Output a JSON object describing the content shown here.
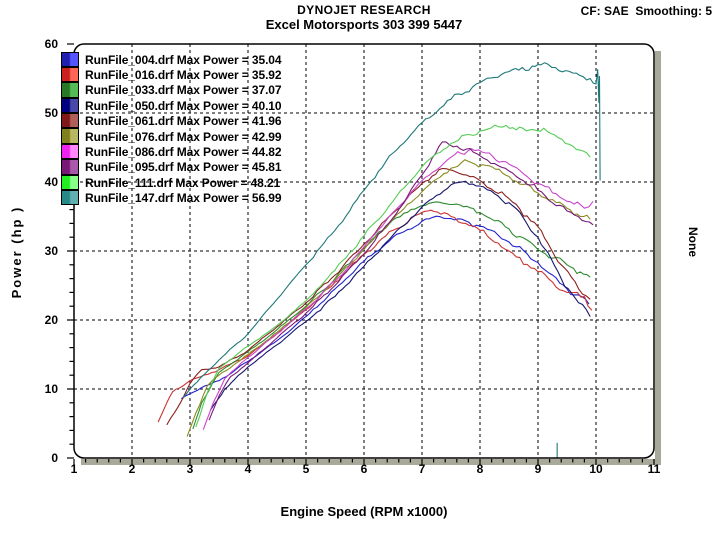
{
  "chart_data": {
    "type": "line",
    "title": "DYNOJET RESEARCH",
    "subtitle": "Excel Motorsports 303 399 5447",
    "correction_note": "CF: SAE  Smoothing: 5",
    "xlabel": "Engine Speed (RPM x1000)",
    "ylabel": "Power (hp )",
    "right_ylabel": "None",
    "xlim": [
      1,
      11
    ],
    "ylim": [
      0,
      60
    ],
    "x_major_ticks": [
      1,
      2,
      3,
      4,
      5,
      6,
      7,
      8,
      9,
      10,
      11
    ],
    "x_minor_step": 0.2,
    "y_major_ticks": [
      0,
      10,
      20,
      30,
      40,
      50,
      60
    ],
    "y_minor_step": 2,
    "grid": "dashed-both-axes",
    "legend_position": "top-left",
    "plot_border_color": "#000000",
    "plot_shadow_color": "#a9a99a",
    "series": [
      {
        "name": "RunFile_004.drf",
        "max_power": 35.04,
        "label": "RunFile_004.drf Max Power = 35.04",
        "color": "#2222cc",
        "swatch": [
          "#2020b0",
          "#5555ff"
        ],
        "points": [
          [
            2.85,
            8.6
          ],
          [
            3,
            9.3
          ],
          [
            3.2,
            10.2
          ],
          [
            3.5,
            11.2
          ],
          [
            4,
            14
          ],
          [
            4.5,
            17
          ],
          [
            5,
            20.5
          ],
          [
            5.5,
            24.5
          ],
          [
            6,
            28.5
          ],
          [
            6.5,
            32
          ],
          [
            7,
            34.3
          ],
          [
            7.25,
            35.04
          ],
          [
            7.5,
            34.7
          ],
          [
            8,
            33.6
          ],
          [
            8.5,
            31.3
          ],
          [
            9,
            28.3
          ],
          [
            9.5,
            24.5
          ],
          [
            9.88,
            22.3
          ]
        ]
      },
      {
        "name": "RunFile_016.drf",
        "max_power": 35.92,
        "label": "RunFile_016.drf Max Power = 35.92",
        "color": "#cc3333",
        "swatch": [
          "#cc2020",
          "#ff6655"
        ],
        "points": [
          [
            2.45,
            5.2
          ],
          [
            2.6,
            8
          ],
          [
            2.7,
            9.6
          ],
          [
            3,
            11.2
          ],
          [
            3.5,
            12.8
          ],
          [
            4,
            14.8
          ],
          [
            4.5,
            18
          ],
          [
            5,
            21.5
          ],
          [
            5.5,
            25.5
          ],
          [
            6,
            29.5
          ],
          [
            6.5,
            33
          ],
          [
            7,
            35.6
          ],
          [
            7.15,
            35.92
          ],
          [
            7.5,
            35
          ],
          [
            8,
            33
          ],
          [
            8.5,
            30
          ],
          [
            9,
            27
          ],
          [
            9.5,
            24
          ],
          [
            9.8,
            23.4
          ],
          [
            9.93,
            21.4
          ]
        ]
      },
      {
        "name": "RunFile_033.drf",
        "max_power": 37.07,
        "label": "RunFile_033.drf Max Power = 37.07",
        "color": "#2e8b2e",
        "swatch": [
          "#267826",
          "#55bb55"
        ],
        "points": [
          [
            3.05,
            4.2
          ],
          [
            3.2,
            8
          ],
          [
            3.5,
            12.4
          ],
          [
            4,
            15.4
          ],
          [
            4.5,
            18.6
          ],
          [
            5,
            22
          ],
          [
            5.5,
            26
          ],
          [
            6,
            30.5
          ],
          [
            6.5,
            34.5
          ],
          [
            7,
            36.6
          ],
          [
            7.3,
            37.07
          ],
          [
            7.6,
            36.8
          ],
          [
            8,
            35.6
          ],
          [
            8.5,
            33.2
          ],
          [
            9,
            30.2
          ],
          [
            9.5,
            28
          ],
          [
            9.9,
            26.2
          ]
        ]
      },
      {
        "name": "RunFile_050.drf",
        "max_power": 40.1,
        "label": "RunFile_050.drf Max Power = 40.10",
        "color": "#16166e",
        "swatch": [
          "#000080",
          "#4848a8"
        ],
        "points": [
          [
            3.35,
            6.9
          ],
          [
            3.6,
            10
          ],
          [
            4,
            13.2
          ],
          [
            4.5,
            16.4
          ],
          [
            5,
            19.8
          ],
          [
            5.5,
            23.4
          ],
          [
            6,
            27.8
          ],
          [
            6.5,
            32.3
          ],
          [
            7,
            36.4
          ],
          [
            7.5,
            39.6
          ],
          [
            7.75,
            40.1
          ],
          [
            8,
            39.4
          ],
          [
            8.5,
            37
          ],
          [
            9,
            32
          ],
          [
            9.4,
            26
          ],
          [
            9.7,
            22.5
          ],
          [
            9.9,
            20.5
          ]
        ]
      },
      {
        "name": "RunFile_061.drf",
        "max_power": 41.96,
        "label": "RunFile_061.drf Max Power = 41.96",
        "color": "#8b2020",
        "swatch": [
          "#801818",
          "#b06058"
        ],
        "points": [
          [
            2.6,
            4.8
          ],
          [
            2.8,
            7.5
          ],
          [
            3,
            10.8
          ],
          [
            3.2,
            12.8
          ],
          [
            3.5,
            13.2
          ],
          [
            4,
            15.6
          ],
          [
            4.5,
            19
          ],
          [
            5,
            22.5
          ],
          [
            5.5,
            26.5
          ],
          [
            6,
            31
          ],
          [
            6.5,
            35.5
          ],
          [
            7,
            39.8
          ],
          [
            7.35,
            41.96
          ],
          [
            7.6,
            41.4
          ],
          [
            8,
            40.2
          ],
          [
            8.5,
            37.6
          ],
          [
            9,
            33.5
          ],
          [
            9.4,
            28
          ],
          [
            9.7,
            24.5
          ],
          [
            9.9,
            23
          ]
        ]
      },
      {
        "name": "RunFile_076.drf",
        "max_power": 42.99,
        "label": "RunFile_076.drf Max Power = 42.99",
        "color": "#8b8b20",
        "swatch": [
          "#80801e",
          "#b8b860"
        ],
        "points": [
          [
            2.95,
            3.1
          ],
          [
            3.1,
            6.5
          ],
          [
            3.3,
            10.5
          ],
          [
            3.5,
            12
          ],
          [
            4,
            15
          ],
          [
            4.5,
            18.2
          ],
          [
            5,
            21.8
          ],
          [
            5.5,
            25.8
          ],
          [
            6,
            30.2
          ],
          [
            6.5,
            34.6
          ],
          [
            7,
            38.6
          ],
          [
            7.5,
            42
          ],
          [
            7.8,
            42.99
          ],
          [
            8.1,
            42.4
          ],
          [
            8.5,
            40.8
          ],
          [
            9,
            38.4
          ],
          [
            9.5,
            36.2
          ],
          [
            9.9,
            34.6
          ]
        ]
      },
      {
        "name": "RunFile_086.drf",
        "max_power": 44.82,
        "label": "RunFile_086.drf Max Power = 44.82",
        "color": "#cc44cc",
        "swatch": [
          "#ee22ee",
          "#ff88ff"
        ],
        "points": [
          [
            3.23,
            4.1
          ],
          [
            3.4,
            8
          ],
          [
            3.6,
            11.5
          ],
          [
            4,
            14.6
          ],
          [
            4.5,
            18
          ],
          [
            5,
            21.6
          ],
          [
            5.5,
            25.6
          ],
          [
            6,
            30.6
          ],
          [
            6.5,
            35.6
          ],
          [
            7,
            40.2
          ],
          [
            7.5,
            43.6
          ],
          [
            7.85,
            44.82
          ],
          [
            8.1,
            44.2
          ],
          [
            8.5,
            42.6
          ],
          [
            9,
            39.8
          ],
          [
            9.5,
            37.2
          ],
          [
            9.8,
            36.2
          ],
          [
            9.95,
            37.2
          ]
        ]
      },
      {
        "name": "RunFile_095.drf",
        "max_power": 45.81,
        "label": "RunFile_095.drf Max Power = 45.81",
        "color": "#7a1a7a",
        "swatch": [
          "#771877",
          "#aa58aa"
        ],
        "points": [
          [
            3.33,
            5.5
          ],
          [
            3.5,
            9
          ],
          [
            3.7,
            11.8
          ],
          [
            4,
            13.8
          ],
          [
            4.5,
            17.4
          ],
          [
            5,
            21
          ],
          [
            5.5,
            25
          ],
          [
            6,
            29.6
          ],
          [
            6.5,
            34.8
          ],
          [
            7,
            41
          ],
          [
            7.35,
            45.81
          ],
          [
            7.6,
            45.2
          ],
          [
            8,
            43.8
          ],
          [
            8.5,
            41.6
          ],
          [
            9,
            38.8
          ],
          [
            9.5,
            35.8
          ],
          [
            9.95,
            33.8
          ]
        ]
      },
      {
        "name": "RunFile_111.drf",
        "max_power": 48.21,
        "label": "RunFile_111.drf Max Power = 48.21",
        "color": "#55cc55",
        "swatch": [
          "#22ee22",
          "#88ff88"
        ],
        "points": [
          [
            3.1,
            4.5
          ],
          [
            3.3,
            9.5
          ],
          [
            3.5,
            13
          ],
          [
            4,
            16.2
          ],
          [
            4.5,
            19.2
          ],
          [
            5,
            22.8
          ],
          [
            5.5,
            27.2
          ],
          [
            6,
            32.2
          ],
          [
            6.5,
            37.2
          ],
          [
            7,
            42.2
          ],
          [
            7.5,
            45.6
          ],
          [
            8,
            47.4
          ],
          [
            8.45,
            48.21
          ],
          [
            8.8,
            47.4
          ],
          [
            9.1,
            47.8
          ],
          [
            9.35,
            46.4
          ],
          [
            9.6,
            45.2
          ],
          [
            9.9,
            43.6
          ]
        ]
      },
      {
        "name": "RunFile_147.drf",
        "max_power": 56.99,
        "label": "RunFile_147.drf Max Power = 56.99",
        "color": "#1f7878",
        "swatch": [
          "#268888",
          "#60b0b0"
        ],
        "points": [
          [
            2.88,
            8.7
          ],
          [
            3,
            10
          ],
          [
            3.5,
            14.2
          ],
          [
            4,
            18
          ],
          [
            4.5,
            23
          ],
          [
            5,
            28
          ],
          [
            5.5,
            33
          ],
          [
            6,
            38.8
          ],
          [
            6.5,
            44.2
          ],
          [
            7,
            48.6
          ],
          [
            7.5,
            52
          ],
          [
            8,
            54.4
          ],
          [
            8.5,
            56
          ],
          [
            8.9,
            56.8
          ],
          [
            9.05,
            56.99
          ],
          [
            9.3,
            56.6
          ],
          [
            9.6,
            55.8
          ],
          [
            9.9,
            55
          ],
          [
            10,
            54.2
          ],
          [
            10.03,
            56.3
          ],
          [
            10.05,
            51.5
          ],
          [
            10.06,
            55.3
          ],
          [
            10.07,
            40.2
          ]
        ]
      }
    ],
    "artifacts": [
      {
        "type": "vertical-segment",
        "rpm": 9.33,
        "hp_from": 0,
        "hp_to": 2.2,
        "color": "#1f7878"
      }
    ]
  }
}
